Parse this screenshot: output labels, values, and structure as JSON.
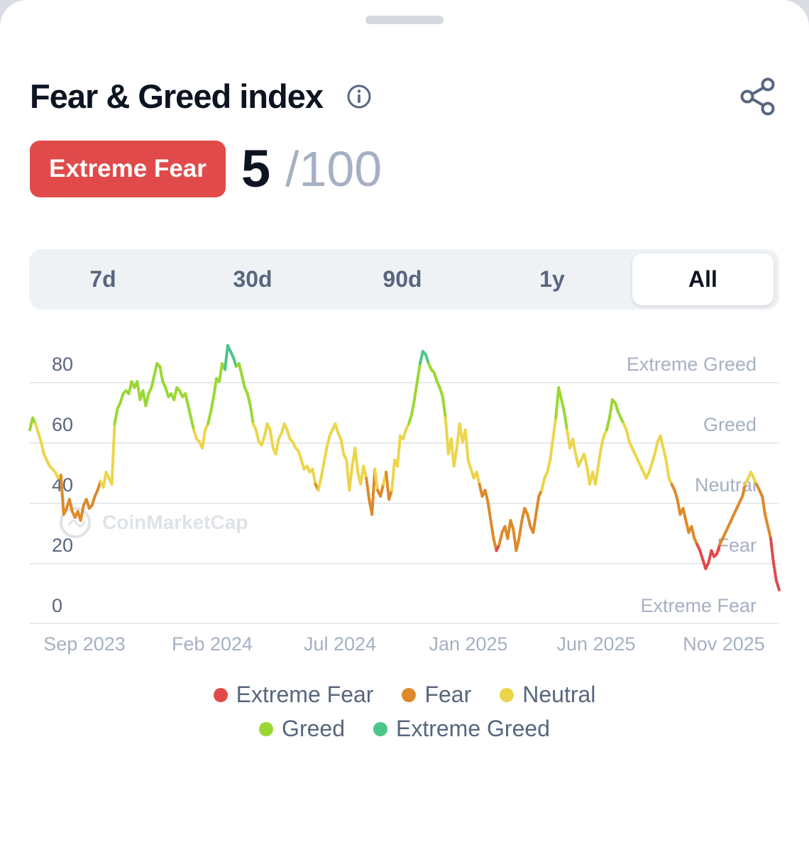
{
  "header": {
    "title": "Fear & Greed index"
  },
  "icons": {
    "info": "info-icon",
    "share": "share-icon"
  },
  "score": {
    "label": "Extreme Fear",
    "value": "5",
    "max": "/100"
  },
  "tabs": [
    {
      "label": "7d",
      "active": false
    },
    {
      "label": "30d",
      "active": false
    },
    {
      "label": "90d",
      "active": false
    },
    {
      "label": "1y",
      "active": false
    },
    {
      "label": "All",
      "active": true
    }
  ],
  "watermark": "CoinMarketCap",
  "colors": {
    "extreme_fear": "#e14a4a",
    "fear": "#dd8a2a",
    "neutral": "#ecd54a",
    "greed": "#9bd734",
    "extreme_greed": "#4dc48a"
  },
  "legend": [
    {
      "label": "Extreme Fear",
      "color": "#e14a4a"
    },
    {
      "label": "Fear",
      "color": "#dd8a2a"
    },
    {
      "label": "Neutral",
      "color": "#ecd54a"
    },
    {
      "label": "Greed",
      "color": "#9bd734"
    },
    {
      "label": "Extreme Greed",
      "color": "#4dc48a"
    }
  ],
  "chart_data": {
    "type": "line",
    "ylim": [
      0,
      85
    ],
    "y_ticks": [
      "80",
      "60",
      "40",
      "20",
      "0"
    ],
    "y_tick_values": [
      80,
      60,
      40,
      20,
      0
    ],
    "zone_labels": [
      "Extreme Greed",
      "Greed",
      "Neutral",
      "Fear",
      "Extreme Fear"
    ],
    "zone_thresholds": [
      80,
      60,
      40,
      20
    ],
    "x_ticks": [
      "Sep 2023",
      "Feb 2024",
      "Jul 2024",
      "Jan 2025",
      "Jun 2025",
      "Nov 2025"
    ],
    "x_range": [
      "2023-08-28",
      "2025-12-15"
    ],
    "series": [
      {
        "values": [
          58,
          62,
          60,
          57,
          54,
          50,
          48,
          46,
          45,
          44,
          42,
          43,
          30,
          32,
          35,
          31,
          29,
          31,
          28,
          33,
          35,
          32,
          33,
          36,
          38,
          41,
          39,
          44,
          42,
          40,
          60,
          65,
          67,
          70,
          71,
          70,
          74,
          72,
          74,
          68,
          71,
          66,
          70,
          72,
          76,
          80,
          79,
          74,
          72,
          69,
          70,
          68,
          72,
          71,
          69,
          70,
          66,
          62,
          58,
          55,
          54,
          52,
          58,
          60,
          64,
          69,
          75,
          74,
          80,
          78,
          86,
          84,
          82,
          79,
          80,
          76,
          72,
          70,
          66,
          60,
          58,
          54,
          53,
          56,
          60,
          58,
          52,
          50,
          55,
          57,
          60,
          58,
          55,
          54,
          52,
          51,
          48,
          45,
          46,
          44,
          45,
          40,
          38,
          42,
          47,
          52,
          56,
          58,
          60,
          57,
          55,
          50,
          48,
          38,
          46,
          52,
          44,
          40,
          46,
          42,
          35,
          30,
          45,
          38,
          36,
          40,
          44,
          35,
          38,
          48,
          46,
          56,
          55,
          58,
          60,
          63,
          68,
          74,
          80,
          84,
          83,
          80,
          78,
          77,
          74,
          72,
          69,
          62,
          50,
          55,
          46,
          52,
          60,
          54,
          58,
          48,
          45,
          42,
          44,
          40,
          36,
          38,
          34,
          28,
          22,
          18,
          20,
          24,
          26,
          22,
          28,
          25,
          18,
          22,
          28,
          32,
          30,
          26,
          24,
          30,
          36,
          38,
          42,
          44,
          48,
          55,
          62,
          72,
          68,
          64,
          58,
          52,
          55,
          50,
          46,
          48,
          50,
          46,
          40,
          44,
          40,
          46,
          52,
          56,
          58,
          62,
          68,
          67,
          64,
          62,
          60,
          58,
          54,
          52,
          50,
          48,
          46,
          44,
          42,
          44,
          47,
          50,
          54,
          56,
          52,
          48,
          42,
          40,
          38,
          35,
          30,
          32,
          28,
          24,
          26,
          22,
          20,
          18,
          15,
          12,
          14,
          18,
          16,
          17,
          20,
          22,
          24,
          26,
          28,
          30,
          32,
          34,
          36,
          40,
          42,
          44,
          42,
          40,
          38,
          36,
          30,
          26,
          22,
          14,
          8,
          5
        ]
      }
    ]
  }
}
